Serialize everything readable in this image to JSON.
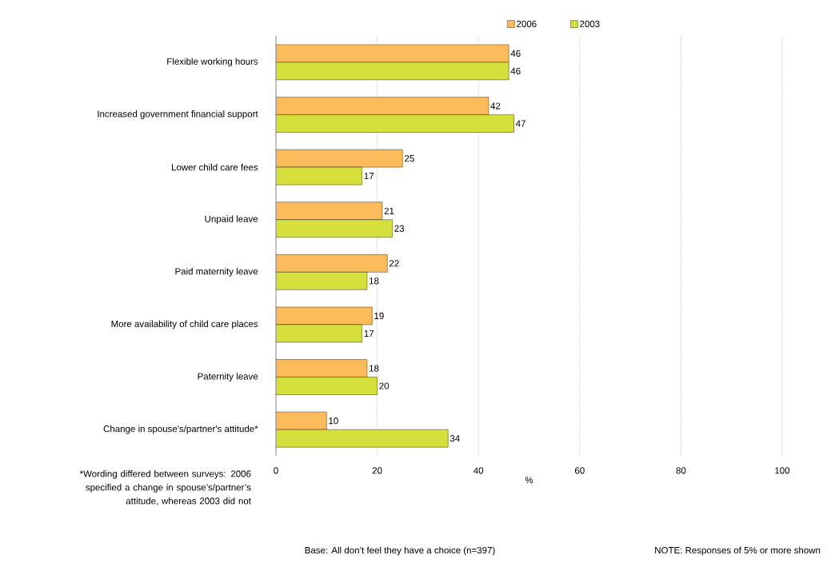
{
  "chart_data": {
    "type": "bar",
    "orientation": "horizontal",
    "xlabel": "%",
    "categories": [
      "Flexible working hours",
      "Increased government financial support",
      "Lower child care fees",
      "Unpaid leave",
      "Paid maternity leave",
      "More availability of child care places",
      "Paternity leave",
      "Change in spouse's/partner's attitude*"
    ],
    "series": [
      {
        "name": "2006",
        "color": "#fdbc5c",
        "values": [
          46,
          42,
          25,
          21,
          22,
          19,
          18,
          10
        ]
      },
      {
        "name": "2003",
        "color": "#d6e03d",
        "values": [
          46,
          47,
          17,
          23,
          18,
          17,
          20,
          34
        ]
      }
    ],
    "xlim": [
      0,
      100
    ],
    "xticks": [
      0,
      20,
      40,
      60,
      80,
      100
    ],
    "grid": "x",
    "legend": "top",
    "data_labels": true,
    "annotations": [
      "*Wording differed between surveys: 2006 specified a change in spouse’s/partner’s attitude, whereas 2003 did not",
      "Base: All don’t feel they have a choice (n=397)",
      "NOTE: Responses of 5% or more shown"
    ]
  }
}
